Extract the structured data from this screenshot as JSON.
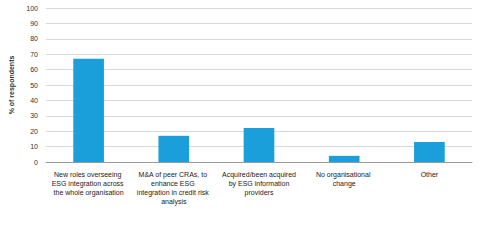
{
  "chart_data": {
    "type": "bar",
    "y_label": "% of respondents",
    "categories": [
      "New roles overseeing ESG integration across the whole organisation",
      "M&A of peer CRAs, to enhance ESG integration in credit risk analysis",
      "Acquired/been acquired by ESG information providers",
      "No organisational change",
      "Other"
    ],
    "values": [
      67,
      17,
      22,
      4,
      13
    ],
    "color": "#1a9fdb",
    "ylim": [
      0,
      100
    ],
    "yticks": [
      0,
      10,
      20,
      30,
      40,
      50,
      60,
      70,
      80,
      90,
      100
    ],
    "grid": true
  }
}
